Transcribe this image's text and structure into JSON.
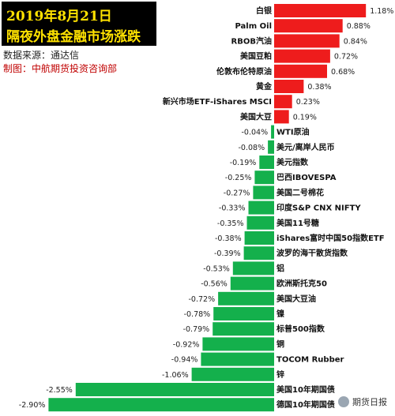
{
  "header": {
    "title_line_1": "2019年8月21日",
    "title_line_2": "隔夜外盘金融市场涨跌",
    "source": "数据来源：通达信",
    "credit": "制图：中航期货投资咨询部"
  },
  "watermark": {
    "text": "期货日报",
    "icon": "wechat-logo-icon"
  },
  "colors": {
    "positive": "#ee1c1c",
    "negative": "#14b04c",
    "title_bg": "#000000",
    "title_text": "#ffe200",
    "credit_text": "#c00000"
  },
  "chart_data": {
    "type": "bar",
    "orientation": "horizontal",
    "title": "隔夜外盘金融市场涨跌",
    "categories": [
      "白银",
      "Palm Oil",
      "RBOB汽油",
      "美国豆粕",
      "伦敦布伦特原油",
      "黄金",
      "新兴市场ETF-iShares MSCI",
      "美国大豆",
      "WTI原油",
      "美元/离岸人民币",
      "美元指数",
      "巴西IBOVESPA",
      "美国二号棉花",
      "印度S&P CNX NIFTY",
      "美国11号糖",
      "iShares富时中国50指数ETF",
      "波罗的海干散货指数",
      "铝",
      "欧洲斯托克50",
      "美国大豆油",
      "镍",
      "标普500指数",
      "铜",
      "TOCOM Rubber",
      "锌",
      "美国10年期国债",
      "德国10年期国债"
    ],
    "values": [
      1.18,
      0.88,
      0.84,
      0.72,
      0.68,
      0.38,
      0.23,
      0.19,
      -0.04,
      -0.08,
      -0.19,
      -0.25,
      -0.27,
      -0.33,
      -0.35,
      -0.38,
      -0.39,
      -0.53,
      -0.56,
      -0.72,
      -0.78,
      -0.79,
      -0.92,
      -0.94,
      -1.06,
      -2.55,
      -2.9
    ],
    "value_labels": [
      "1.18%",
      "0.88%",
      "0.84%",
      "0.72%",
      "0.68%",
      "0.38%",
      "0.23%",
      "0.19%",
      "-0.04%",
      "-0.08%",
      "-0.19%",
      "-0.25%",
      "-0.27%",
      "-0.33%",
      "-0.35%",
      "-0.38%",
      "-0.39%",
      "-0.53%",
      "-0.56%",
      "-0.72%",
      "-0.78%",
      "-0.79%",
      "-0.92%",
      "-0.94%",
      "-1.06%",
      "-2.55%",
      "-2.90%"
    ],
    "unit": "%",
    "xlim": [
      -2.9,
      1.18
    ],
    "grid": false,
    "legend": "none"
  }
}
